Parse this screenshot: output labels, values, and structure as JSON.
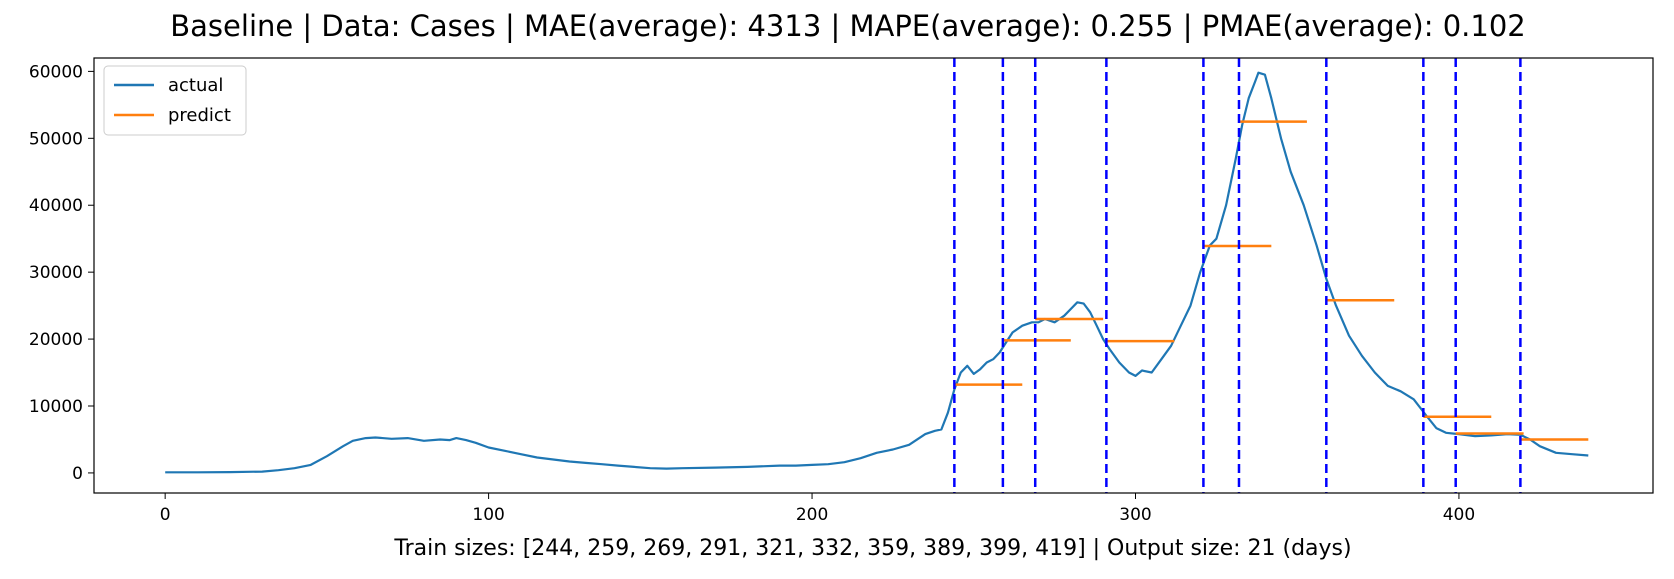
{
  "chart_data": {
    "type": "line",
    "title": "Baseline | Data: Cases | MAE(average): 4313 | MAPE(average): 0.255 | PMAE(average): 0.102",
    "xlabel": "Train sizes: [244, 259, 269, 291, 321, 332, 359, 389, 399, 419] | Output size: 21 (days)",
    "ylabel": "",
    "xlim": [
      -22,
      460
    ],
    "ylim": [
      -3000,
      62000
    ],
    "xticks": [
      0,
      100,
      200,
      300,
      400
    ],
    "yticks": [
      0,
      10000,
      20000,
      30000,
      40000,
      50000,
      60000
    ],
    "grid": false,
    "legend": {
      "placement": "upper-left",
      "entries": [
        "actual",
        "predict"
      ]
    },
    "colors": {
      "actual": "#1f77b4",
      "predict": "#ff7f0e",
      "splits": "#0000ff"
    },
    "series": [
      {
        "name": "actual",
        "x": [
          0,
          10,
          20,
          30,
          35,
          40,
          45,
          50,
          55,
          58,
          62,
          65,
          70,
          75,
          80,
          85,
          88,
          90,
          93,
          96,
          100,
          105,
          110,
          115,
          120,
          125,
          130,
          135,
          140,
          145,
          150,
          155,
          160,
          170,
          180,
          190,
          195,
          200,
          205,
          210,
          215,
          220,
          225,
          230,
          235,
          238,
          240,
          242,
          244,
          246,
          248,
          250,
          252,
          254,
          256,
          258,
          260,
          262,
          265,
          268,
          270,
          272,
          275,
          278,
          280,
          282,
          284,
          286,
          288,
          290,
          292,
          295,
          298,
          300,
          302,
          305,
          308,
          311,
          314,
          317,
          320,
          323,
          325,
          328,
          331,
          333,
          335,
          337,
          338,
          340,
          342,
          345,
          348,
          352,
          356,
          359,
          362,
          366,
          370,
          374,
          378,
          382,
          386,
          390,
          393,
          396,
          400,
          405,
          410,
          415,
          419,
          422,
          425,
          430,
          435,
          440
        ],
        "y": [
          100,
          100,
          120,
          200,
          400,
          700,
          1200,
          2500,
          4000,
          4800,
          5200,
          5300,
          5100,
          5200,
          4800,
          5000,
          4900,
          5200,
          4900,
          4500,
          3800,
          3300,
          2800,
          2300,
          2000,
          1700,
          1500,
          1300,
          1100,
          900,
          700,
          650,
          700,
          800,
          900,
          1100,
          1100,
          1200,
          1300,
          1600,
          2200,
          3000,
          3500,
          4200,
          5800,
          6300,
          6500,
          9000,
          12500,
          15000,
          16000,
          14800,
          15500,
          16500,
          17000,
          18000,
          19500,
          21000,
          22000,
          22500,
          22500,
          23000,
          22500,
          23500,
          24500,
          25500,
          25300,
          24000,
          22000,
          20000,
          18500,
          16500,
          15000,
          14500,
          15300,
          15000,
          17000,
          19000,
          22000,
          25000,
          30000,
          34000,
          35000,
          40000,
          47000,
          52000,
          56000,
          58500,
          59800,
          59500,
          56000,
          50000,
          45000,
          40000,
          34000,
          29000,
          25000,
          20500,
          17500,
          15000,
          13000,
          12200,
          11000,
          8500,
          6700,
          6000,
          5800,
          5500,
          5600,
          5800,
          5700,
          5000,
          4000,
          3000,
          2800,
          2600
        ]
      },
      {
        "name": "predict",
        "segments": [
          {
            "x0": 244,
            "x1": 265,
            "y": 13200
          },
          {
            "x0": 259,
            "x1": 280,
            "y": 19800
          },
          {
            "x0": 269,
            "x1": 290,
            "y": 23000
          },
          {
            "x0": 291,
            "x1": 312,
            "y": 19700
          },
          {
            "x0": 321,
            "x1": 342,
            "y": 33900
          },
          {
            "x0": 332,
            "x1": 353,
            "y": 52500
          },
          {
            "x0": 359,
            "x1": 380,
            "y": 25800
          },
          {
            "x0": 389,
            "x1": 410,
            "y": 8400
          },
          {
            "x0": 399,
            "x1": 420,
            "y": 5900
          },
          {
            "x0": 419,
            "x1": 440,
            "y": 5000
          }
        ]
      }
    ],
    "vlines": [
      244,
      259,
      269,
      291,
      321,
      332,
      359,
      389,
      399,
      419
    ]
  }
}
